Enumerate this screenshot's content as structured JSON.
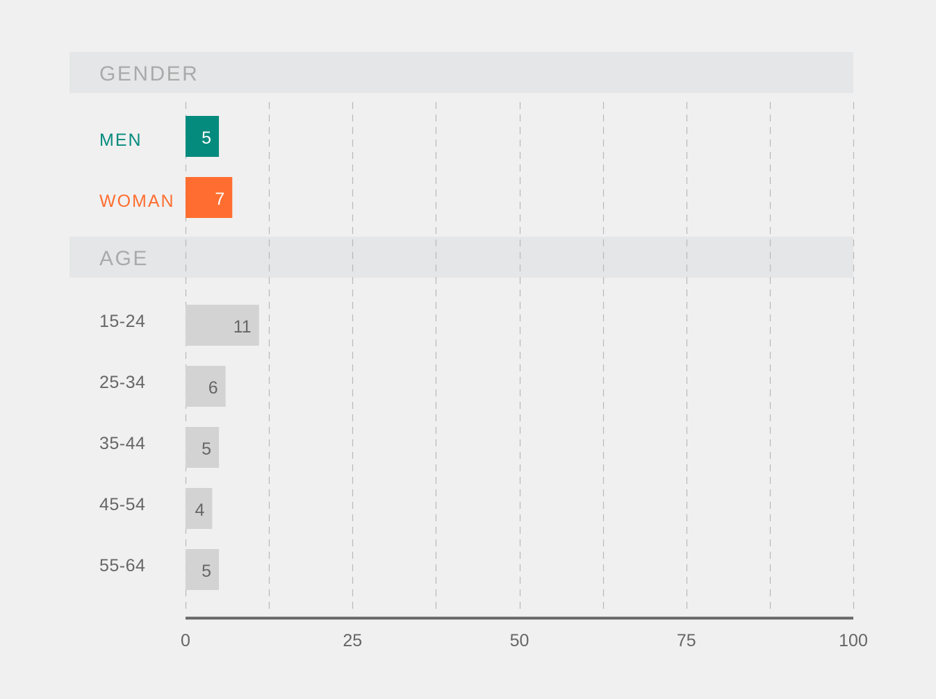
{
  "chart_data": {
    "type": "bar",
    "orientation": "horizontal",
    "xlim": [
      0,
      100
    ],
    "x_ticks": [
      0,
      25,
      50,
      75,
      100
    ],
    "x_tick_labels": [
      "0",
      "25",
      "50",
      "75",
      "100"
    ],
    "grid": "vertical dashed lines every 12.5",
    "groups": [
      {
        "label": "GENDER",
        "items": [
          {
            "label": "MEN",
            "value": 5,
            "value_label": "5",
            "color": "#058b7e",
            "label_color": "#058b7e",
            "value_text_color": "#ffffff"
          },
          {
            "label": "WOMAN",
            "value": 7,
            "value_label": "7",
            "color": "#ff6e30",
            "label_color": "#ff6e30",
            "value_text_color": "#ffffff"
          }
        ]
      },
      {
        "label": "AGE",
        "items": [
          {
            "label": "15-24",
            "value": 11,
            "value_label": "11",
            "color": "#d3d3d3",
            "label_color": "#666666",
            "value_text_color": "#666666"
          },
          {
            "label": "25-34",
            "value": 6,
            "value_label": "6",
            "color": "#d3d3d3",
            "label_color": "#666666",
            "value_text_color": "#666666"
          },
          {
            "label": "35-44",
            "value": 5,
            "value_label": "5",
            "color": "#d3d3d3",
            "label_color": "#666666",
            "value_text_color": "#666666"
          },
          {
            "label": "45-54",
            "value": 4,
            "value_label": "4",
            "color": "#d3d3d3",
            "label_color": "#666666",
            "value_text_color": "#666666"
          },
          {
            "label": "55-64",
            "value": 5,
            "value_label": "5",
            "color": "#d3d3d3",
            "label_color": "#666666",
            "value_text_color": "#666666"
          }
        ]
      }
    ]
  },
  "colors": {
    "background": "#f0f0f0",
    "group_header_band": "#e5e6e7",
    "group_header_text": "#aaaaaa",
    "grid": "#b8b8b8",
    "axis": "#666666",
    "tick_text": "#666666"
  }
}
